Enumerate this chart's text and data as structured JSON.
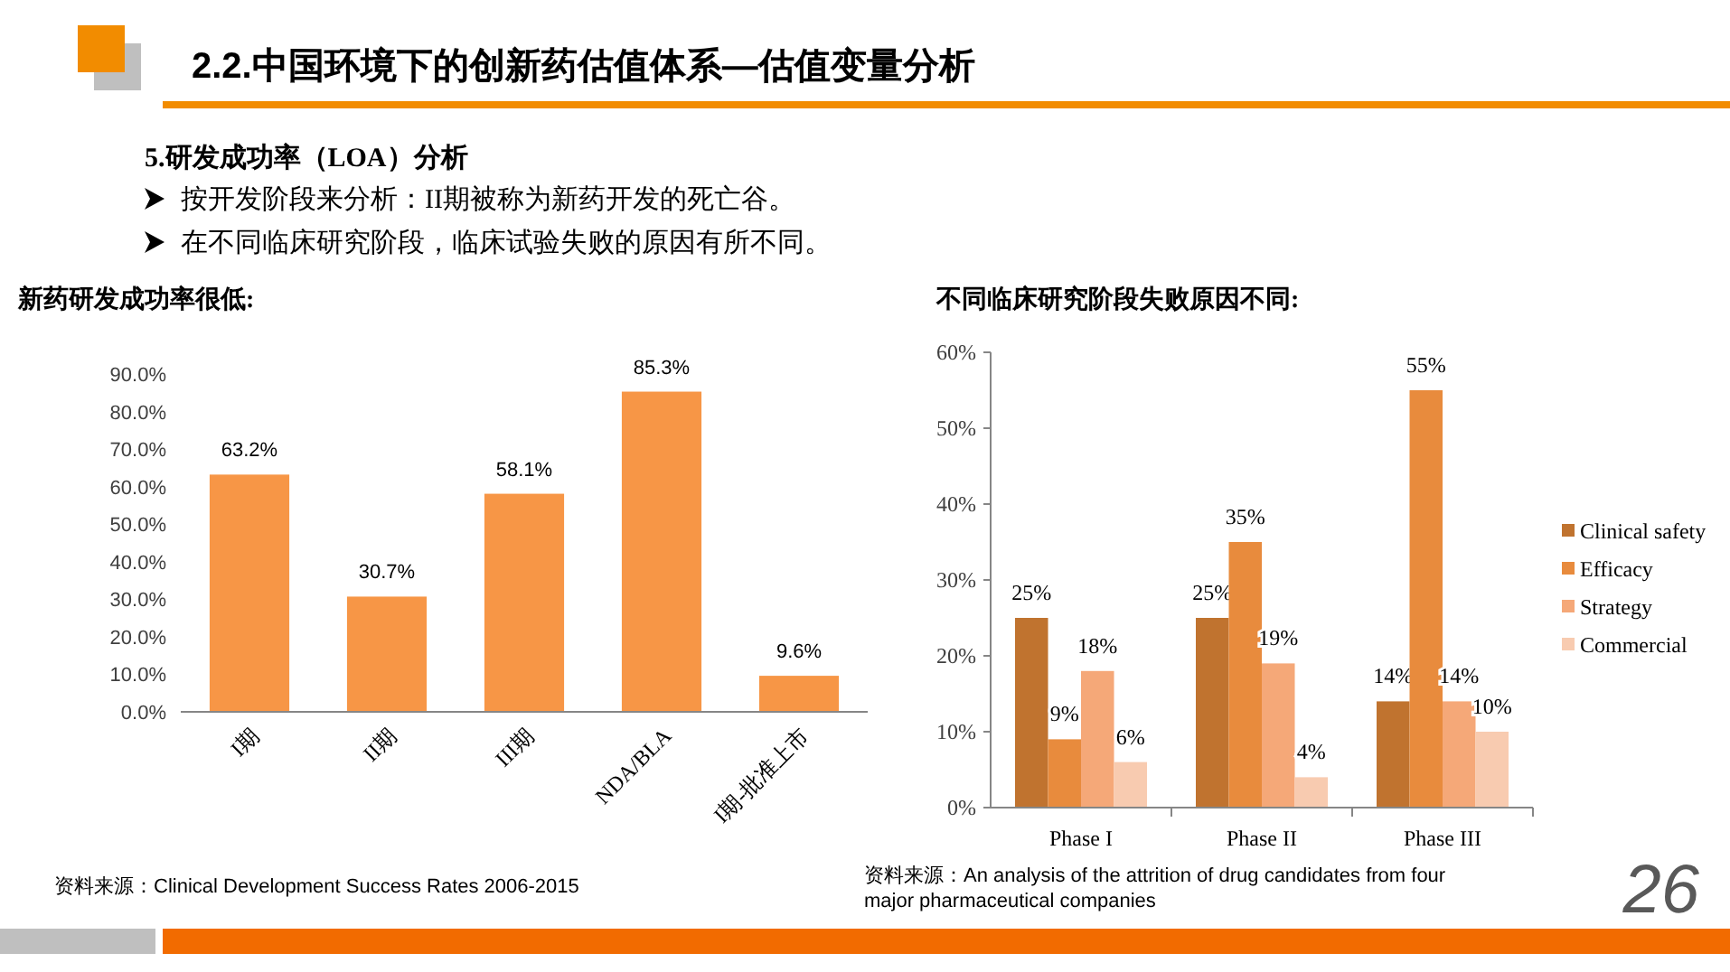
{
  "chart_data": [
    {
      "type": "other",
      "title": "2.2.中国环境下的创新药估值体系—估值变量分析",
      "annotations": [
        "5.研发成功率（LOA）分析",
        "按开发阶段来分析：II期被称为新药开发的死亡谷。",
        "在不同临床研究阶段，临床试验失败的原因有所不同。",
        "26"
      ]
    },
    {
      "type": "bar",
      "title": "新药研发成功率很低:",
      "categories": [
        "I期",
        "II期",
        "III期",
        "NDA/BLA",
        "I期-批准上市"
      ],
      "values": [
        63.2,
        30.7,
        58.1,
        85.3,
        9.6
      ],
      "value_labels": [
        "63.2%",
        "30.7%",
        "58.1%",
        "85.3%",
        "9.6%"
      ],
      "color": "#f79646",
      "ylim": [
        0,
        90
      ],
      "yticks": [
        {
          "value": 0,
          "label": "0.0%"
        },
        {
          "value": 10,
          "label": "10.0%"
        },
        {
          "value": 20,
          "label": "20.0%"
        },
        {
          "value": 30,
          "label": "30.0%"
        },
        {
          "value": 40,
          "label": "40.0%"
        },
        {
          "value": 50,
          "label": "50.0%"
        },
        {
          "value": 60,
          "label": "60.0%"
        },
        {
          "value": 70,
          "label": "70.0%"
        },
        {
          "value": 80,
          "label": "80.0%"
        },
        {
          "value": 90,
          "label": "90.0%"
        }
      ],
      "annotations": [
        "资料来源：Clinical Development Success Rates 2006-2015"
      ]
    },
    {
      "type": "bar",
      "title": "不同临床研究阶段失败原因不同:",
      "categories": [
        "Phase I",
        "Phase II",
        "Phase III"
      ],
      "series": [
        {
          "name": "Clinical safety",
          "color": "#c0732f",
          "values": [
            25,
            25,
            14
          ],
          "value_labels": [
            "25%",
            "25%",
            "14%"
          ]
        },
        {
          "name": "Efficacy",
          "color": "#e88b3d",
          "values": [
            9,
            35,
            55
          ],
          "value_labels": [
            "9%",
            "35%",
            "55%"
          ]
        },
        {
          "name": "Strategy",
          "color": "#f5a878",
          "values": [
            18,
            19,
            14
          ],
          "value_labels": [
            "18%",
            "19%",
            "14%"
          ]
        },
        {
          "name": "Commercial",
          "color": "#f8cbb0",
          "values": [
            6,
            4,
            10
          ],
          "value_labels": [
            "6%",
            "4%",
            "10%"
          ]
        }
      ],
      "ylim": [
        0,
        60
      ],
      "yticks": [
        {
          "value": 0,
          "label": "0%"
        },
        {
          "value": 10,
          "label": "10%"
        },
        {
          "value": 20,
          "label": "20%"
        },
        {
          "value": 30,
          "label": "30%"
        },
        {
          "value": 40,
          "label": "40%"
        },
        {
          "value": 50,
          "label": "50%"
        },
        {
          "value": 60,
          "label": "60%"
        }
      ],
      "legend": "right",
      "annotations": [
        "资料来源：An analysis of the attrition of drug candidates from four major pharmaceutical companies"
      ]
    }
  ]
}
